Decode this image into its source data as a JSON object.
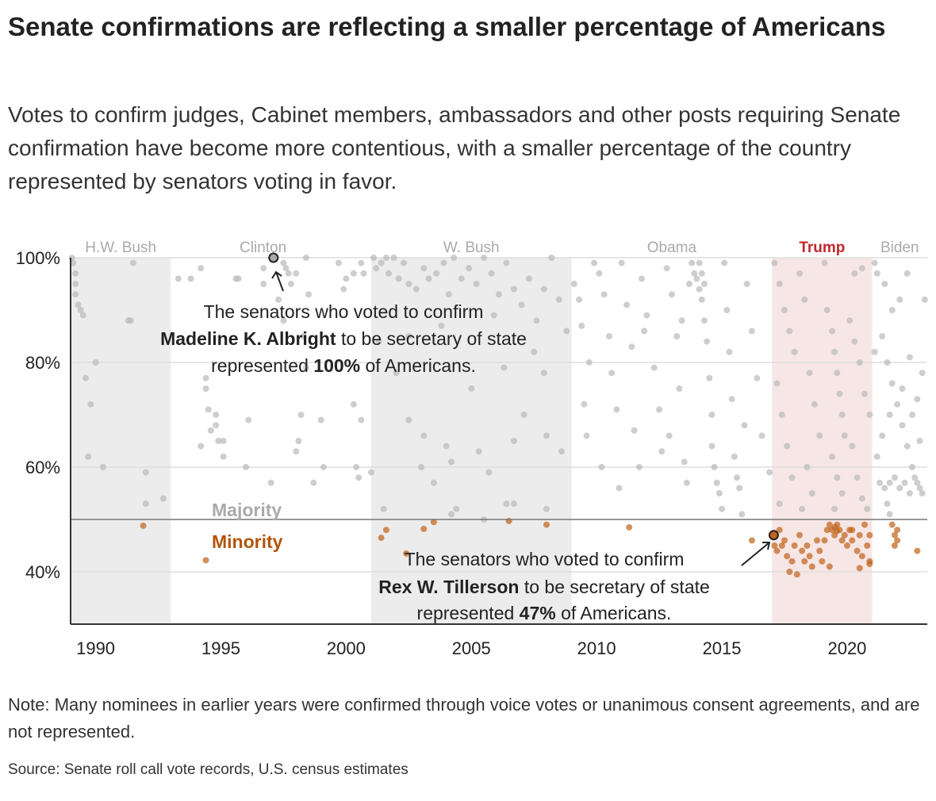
{
  "title": "Senate confirmations are reflecting a smaller percentage of Americans",
  "subtitle": "Votes to confirm judges, Cabinet members, ambassadors and other posts requiring Senate confirmation have become more contentious, with a smaller percentage of the country represented by senators voting in favor.",
  "note": "Note: Many nominees in earlier years were confirmed through voice votes or unanimous consent agreements, and are not represented.",
  "source": "Source: Senate roll call vote records, U.S. census estimates",
  "chart_data": {
    "type": "scatter",
    "xlim": [
      1989,
      2023.2
    ],
    "ylim": [
      30,
      100
    ],
    "x_ticks": [
      1990,
      1995,
      2000,
      2005,
      2010,
      2015,
      2020
    ],
    "x_tick_labels": [
      "1990",
      "1995",
      "2000",
      "2005",
      "2010",
      "2015",
      "2020"
    ],
    "y_ticks": [
      40,
      60,
      80,
      100
    ],
    "y_tick_labels": [
      "40%",
      "60%",
      "80%",
      "100%"
    ],
    "grid": true,
    "threshold": 50,
    "threshold_labels": {
      "above": "Majority",
      "below": "Minority"
    },
    "colors": {
      "majority": "#b9b9b9",
      "minority": "#c0621a",
      "shade_gray": "#ececec",
      "shade_trump": "#f7e6e6",
      "trump_label": "#c0272d",
      "minority_label": "#b3540a"
    },
    "eras": [
      {
        "name": "H.W. Bush",
        "start": 1989,
        "end": 1993,
        "shaded": "gray"
      },
      {
        "name": "Clinton",
        "start": 1993,
        "end": 2001,
        "shaded": "none"
      },
      {
        "name": "W. Bush",
        "start": 2001,
        "end": 2009,
        "shaded": "gray"
      },
      {
        "name": "Obama",
        "start": 2009,
        "end": 2017,
        "shaded": "none"
      },
      {
        "name": "Trump",
        "start": 2017,
        "end": 2021,
        "shaded": "trump"
      },
      {
        "name": "Biden",
        "start": 2021,
        "end": 2023.2,
        "shaded": "none"
      }
    ],
    "points": [
      [
        1989.05,
        100
      ],
      [
        1989.1,
        99
      ],
      [
        1989.2,
        97
      ],
      [
        1989.2,
        95
      ],
      [
        1989.2,
        93
      ],
      [
        1989.4,
        90
      ],
      [
        1989.5,
        89
      ],
      [
        1990,
        80
      ],
      [
        1989.6,
        77
      ],
      [
        1989.8,
        72
      ],
      [
        1989.7,
        62
      ],
      [
        1990.3,
        60
      ],
      [
        1991.3,
        88
      ],
      [
        1991.4,
        88
      ],
      [
        1991.5,
        99
      ],
      [
        1992,
        59
      ],
      [
        1992,
        53
      ],
      [
        1992.7,
        54
      ],
      [
        1991.9,
        48.8
      ],
      [
        1989.3,
        91
      ],
      [
        1993.3,
        96
      ],
      [
        1993.8,
        96
      ],
      [
        1994.2,
        98
      ],
      [
        1994.2,
        64
      ],
      [
        1994.4,
        77
      ],
      [
        1994.4,
        75
      ],
      [
        1994.5,
        71
      ],
      [
        1994.6,
        67
      ],
      [
        1994.8,
        70
      ],
      [
        1994.8,
        68
      ],
      [
        1994.9,
        65
      ],
      [
        1995.1,
        62
      ],
      [
        1995.1,
        65
      ],
      [
        1995.6,
        96
      ],
      [
        1995.7,
        96
      ],
      [
        1996,
        60
      ],
      [
        1996.1,
        69
      ],
      [
        1996.7,
        98
      ],
      [
        1996.7,
        95
      ],
      [
        1997,
        57
      ],
      [
        1997.5,
        99
      ],
      [
        1997.6,
        98
      ],
      [
        1997.7,
        97
      ],
      [
        1997.8,
        95
      ],
      [
        1998.0,
        97
      ],
      [
        1998.0,
        63
      ],
      [
        1998.1,
        65
      ],
      [
        1998.2,
        70
      ],
      [
        1998.3,
        85
      ],
      [
        1998.4,
        100
      ],
      [
        1998.5,
        93
      ],
      [
        1998.7,
        57
      ],
      [
        1999,
        69
      ],
      [
        1999.1,
        60
      ],
      [
        1999.7,
        99
      ],
      [
        1999.9,
        94
      ],
      [
        2000,
        96
      ],
      [
        2000.3,
        97
      ],
      [
        2000.3,
        72
      ],
      [
        2000.4,
        60
      ],
      [
        2000.5,
        58
      ],
      [
        2000.6,
        99
      ],
      [
        2000.6,
        69
      ],
      [
        2000.7,
        97
      ],
      [
        2001,
        59
      ],
      [
        1994.4,
        42.2
      ],
      [
        1997.3,
        92
      ],
      [
        1997.5,
        88
      ],
      [
        1998.4,
        79
      ],
      [
        2001.1,
        100
      ],
      [
        2001.2,
        98
      ],
      [
        2001.4,
        99
      ],
      [
        2001.6,
        100
      ],
      [
        2001.7,
        97
      ],
      [
        2001.9,
        100
      ],
      [
        2002.1,
        96
      ],
      [
        2002.3,
        99
      ],
      [
        2002.5,
        95
      ],
      [
        2002.8,
        94
      ],
      [
        2003.1,
        98
      ],
      [
        2003.3,
        96
      ],
      [
        2003.6,
        97
      ],
      [
        2003.9,
        99
      ],
      [
        2004.1,
        93
      ],
      [
        2004.3,
        100
      ],
      [
        2004.6,
        96
      ],
      [
        2004.9,
        98
      ],
      [
        2005.2,
        95
      ],
      [
        2005.5,
        100
      ],
      [
        2005.8,
        97
      ],
      [
        2006.1,
        93
      ],
      [
        2006.4,
        99
      ],
      [
        2006.7,
        94
      ],
      [
        2007,
        91
      ],
      [
        2007.3,
        96
      ],
      [
        2007.6,
        88
      ],
      [
        2007.9,
        94
      ],
      [
        2008.2,
        100
      ],
      [
        2008.5,
        92
      ],
      [
        2008.8,
        86
      ],
      [
        2001.3,
        84
      ],
      [
        2002,
        78
      ],
      [
        2002.5,
        69
      ],
      [
        2003,
        60
      ],
      [
        2003.1,
        66
      ],
      [
        2003.5,
        57
      ],
      [
        2004,
        64
      ],
      [
        2004.2,
        61
      ],
      [
        2005,
        75
      ],
      [
        2005.3,
        63
      ],
      [
        2005.7,
        59
      ],
      [
        2006.3,
        79
      ],
      [
        2006.7,
        65
      ],
      [
        2007.1,
        70
      ],
      [
        2007.5,
        82
      ],
      [
        2008,
        66
      ],
      [
        2008.6,
        63
      ],
      [
        2001.5,
        52
      ],
      [
        2004.2,
        51
      ],
      [
        2004.4,
        52
      ],
      [
        2006.4,
        53
      ],
      [
        2006.7,
        53
      ],
      [
        2008,
        52
      ],
      [
        2001.4,
        46.5
      ],
      [
        2001.6,
        48
      ],
      [
        2002.4,
        43.5
      ],
      [
        2003.1,
        48.2
      ],
      [
        2003.5,
        49.5
      ],
      [
        2005.5,
        50
      ],
      [
        2006.5,
        49.7
      ],
      [
        2008,
        49
      ],
      [
        2002.5,
        85
      ],
      [
        2003.8,
        87
      ],
      [
        2005.9,
        89
      ],
      [
        2007.9,
        78
      ],
      [
        2009.1,
        95
      ],
      [
        2009.3,
        92
      ],
      [
        2009.4,
        87
      ],
      [
        2009.5,
        72
      ],
      [
        2009.6,
        66
      ],
      [
        2009.9,
        99
      ],
      [
        2010.1,
        97
      ],
      [
        2010.3,
        93
      ],
      [
        2010.5,
        85
      ],
      [
        2010.6,
        78
      ],
      [
        2010.8,
        71
      ],
      [
        2011,
        99
      ],
      [
        2011.2,
        91
      ],
      [
        2011.4,
        83
      ],
      [
        2011.5,
        67
      ],
      [
        2011.7,
        60
      ],
      [
        2011.3,
        48.5
      ],
      [
        2011.8,
        96
      ],
      [
        2012,
        89
      ],
      [
        2012.3,
        79
      ],
      [
        2012.5,
        71
      ],
      [
        2012.6,
        63
      ],
      [
        2012.8,
        98
      ],
      [
        2013,
        93
      ],
      [
        2013.2,
        85
      ],
      [
        2013.3,
        75
      ],
      [
        2013.5,
        61
      ],
      [
        2013.6,
        57
      ],
      [
        2013.8,
        99
      ],
      [
        2014,
        96
      ],
      [
        2014.1,
        94
      ],
      [
        2014.2,
        92
      ],
      [
        2014.3,
        88
      ],
      [
        2014.4,
        84
      ],
      [
        2014.5,
        77
      ],
      [
        2014.6,
        70
      ],
      [
        2014.6,
        64
      ],
      [
        2014.7,
        60
      ],
      [
        2014.8,
        57
      ],
      [
        2014.9,
        55
      ],
      [
        2015,
        52
      ],
      [
        2015.1,
        99
      ],
      [
        2015.2,
        90
      ],
      [
        2015.3,
        82
      ],
      [
        2015.4,
        73
      ],
      [
        2015.5,
        62
      ],
      [
        2015.6,
        58
      ],
      [
        2015.7,
        56
      ],
      [
        2015.8,
        51
      ],
      [
        2016,
        95
      ],
      [
        2016.2,
        86
      ],
      [
        2016.4,
        77
      ],
      [
        2016.6,
        66
      ],
      [
        2016.9,
        59
      ],
      [
        2016.2,
        46
      ],
      [
        2013.9,
        97
      ],
      [
        2014.1,
        99
      ],
      [
        2014.2,
        97
      ],
      [
        2013.7,
        95
      ],
      [
        2014.3,
        95
      ],
      [
        2010.9,
        56
      ],
      [
        2012.9,
        66
      ],
      [
        2015.9,
        68
      ],
      [
        2010.2,
        60
      ],
      [
        2011.9,
        86
      ],
      [
        2009.7,
        80
      ],
      [
        2013.4,
        88
      ],
      [
        2017.1,
        99
      ],
      [
        2017.3,
        95
      ],
      [
        2017.5,
        90
      ],
      [
        2017.7,
        86
      ],
      [
        2017.9,
        82
      ],
      [
        2017.2,
        76
      ],
      [
        2017.4,
        70
      ],
      [
        2017.6,
        64
      ],
      [
        2017.8,
        58
      ],
      [
        2017.3,
        53
      ],
      [
        2018.1,
        97
      ],
      [
        2018.3,
        92
      ],
      [
        2018.5,
        78
      ],
      [
        2018.7,
        72
      ],
      [
        2018.9,
        66
      ],
      [
        2018.4,
        60
      ],
      [
        2018.6,
        55
      ],
      [
        2018.2,
        52
      ],
      [
        2019.2,
        90
      ],
      [
        2019.4,
        86
      ],
      [
        2019.5,
        82
      ],
      [
        2019.6,
        78
      ],
      [
        2019.7,
        74
      ],
      [
        2019.8,
        70
      ],
      [
        2019.9,
        66
      ],
      [
        2019.4,
        62
      ],
      [
        2019.6,
        58
      ],
      [
        2019.8,
        55
      ],
      [
        2019.5,
        52
      ],
      [
        2020.1,
        88
      ],
      [
        2020.3,
        84
      ],
      [
        2020.5,
        80
      ],
      [
        2020.7,
        74
      ],
      [
        2020.9,
        70
      ],
      [
        2020.2,
        64
      ],
      [
        2020.4,
        58
      ],
      [
        2020.6,
        54
      ],
      [
        2020.8,
        52
      ],
      [
        2019.1,
        99
      ],
      [
        2020.6,
        98
      ],
      [
        2020.3,
        97
      ],
      [
        2017.1,
        45
      ],
      [
        2017.2,
        44
      ],
      [
        2017.3,
        48
      ],
      [
        2017.5,
        46
      ],
      [
        2017.6,
        43
      ],
      [
        2017.8,
        42
      ],
      [
        2017.9,
        45
      ],
      [
        2018.1,
        47
      ],
      [
        2018.2,
        44
      ],
      [
        2018.3,
        42
      ],
      [
        2018.5,
        43
      ],
      [
        2018.6,
        41
      ],
      [
        2018.8,
        46
      ],
      [
        2018.9,
        44
      ],
      [
        2019.0,
        42
      ],
      [
        2019.2,
        48
      ],
      [
        2019.3,
        49
      ],
      [
        2019.4,
        48
      ],
      [
        2019.5,
        47
      ],
      [
        2019.6,
        49
      ],
      [
        2019.7,
        48
      ],
      [
        2019.8,
        46
      ],
      [
        2019.9,
        47
      ],
      [
        2020.0,
        45
      ],
      [
        2020.1,
        48
      ],
      [
        2020.2,
        46
      ],
      [
        2020.4,
        44
      ],
      [
        2020.5,
        47
      ],
      [
        2020.6,
        43
      ],
      [
        2020.8,
        45
      ],
      [
        2020.9,
        42
      ],
      [
        2020.9,
        47
      ],
      [
        2017.7,
        40
      ],
      [
        2018.0,
        39.5
      ],
      [
        2019.3,
        41
      ],
      [
        2020.5,
        40.7
      ],
      [
        2019.5,
        48.5
      ],
      [
        2019.6,
        47.8
      ],
      [
        2018.4,
        45
      ],
      [
        2017.4,
        45
      ],
      [
        2020.2,
        48
      ],
      [
        2020.7,
        49
      ],
      [
        2020.9,
        41.5
      ],
      [
        2019.1,
        46
      ],
      [
        2021.1,
        99
      ],
      [
        2021.2,
        97
      ],
      [
        2021.5,
        95
      ],
      [
        2021.8,
        90
      ],
      [
        2022.4,
        97
      ],
      [
        2022.1,
        92
      ],
      [
        2021.4,
        85
      ],
      [
        2021.6,
        80
      ],
      [
        2021.8,
        76
      ],
      [
        2022.0,
        72
      ],
      [
        2022.2,
        68
      ],
      [
        2022.4,
        64
      ],
      [
        2022.6,
        60
      ],
      [
        2022.8,
        57
      ],
      [
        2023.0,
        55
      ],
      [
        2021.3,
        57
      ],
      [
        2021.5,
        56
      ],
      [
        2021.7,
        57
      ],
      [
        2021.9,
        58
      ],
      [
        2022.1,
        56
      ],
      [
        2022.3,
        57
      ],
      [
        2022.5,
        55
      ],
      [
        2022.7,
        58
      ],
      [
        2022.9,
        56
      ],
      [
        2021.6,
        53
      ],
      [
        2021.7,
        51
      ],
      [
        2022.2,
        75
      ],
      [
        2022.6,
        70
      ],
      [
        2022.9,
        65
      ],
      [
        2023.0,
        78
      ],
      [
        2023.1,
        92
      ],
      [
        2021.8,
        49
      ],
      [
        2021.9,
        47
      ],
      [
        2021.9,
        45
      ],
      [
        2022.0,
        46
      ],
      [
        2022.0,
        48
      ],
      [
        2022.8,
        44
      ],
      [
        2021.2,
        62
      ],
      [
        2021.4,
        66
      ],
      [
        2021.7,
        70
      ],
      [
        2021.1,
        82
      ],
      [
        2022.5,
        81
      ],
      [
        2022.8,
        73
      ]
    ],
    "annotations": [
      {
        "point": [
          1997.1,
          100
        ],
        "line1": "The senators who voted to confirm",
        "bold_name": "Madeline K. Albright",
        "line2_rest": " to be secretary of state",
        "line3_pre": "represented ",
        "bold_value": "100%",
        "line3_post": " of Americans."
      },
      {
        "point": [
          2017.07,
          47
        ],
        "line1": "The senators who voted to confirm",
        "bold_name": "Rex W. Tillerson",
        "line2_rest": " to be secretary of state",
        "line3_pre": "represented ",
        "bold_value": "47%",
        "line3_post": " of Americans."
      }
    ]
  }
}
